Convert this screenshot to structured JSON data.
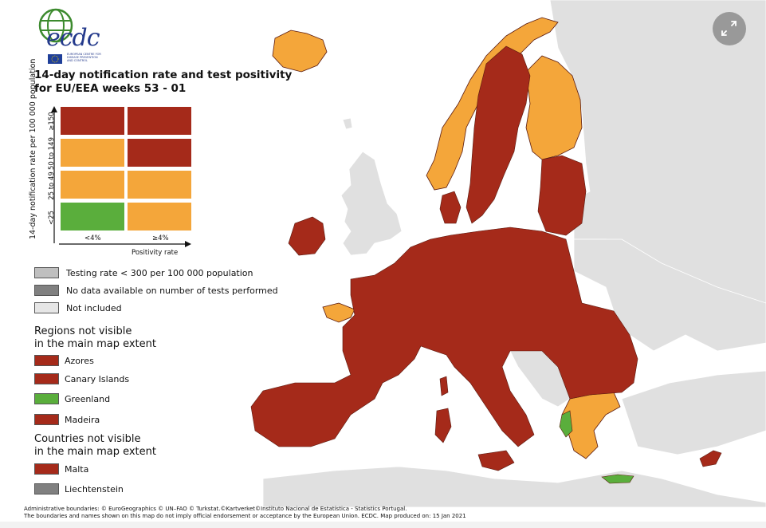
{
  "logo": {
    "text": "ecdc",
    "subtitle_lines": [
      "EUROPEAN CENTRE FOR",
      "DISEASE PREVENTION",
      "AND CONTROL"
    ]
  },
  "title": {
    "line1": "14-day notification rate and test positivity",
    "line2": "for EU/EEA weeks 53 - 01"
  },
  "matrix": {
    "y_axis_label": "14-day notification rate per 100 000 population",
    "y_ticks": [
      "≥150",
      "50 to 149",
      "25 to 49",
      "<25"
    ],
    "x_ticks": [
      "<4%",
      "≥4%"
    ],
    "x_axis_label": "Positivity rate",
    "cell_colors": [
      [
        "#a52a1a",
        "#a52a1a"
      ],
      [
        "#f4a63a",
        "#a52a1a"
      ],
      [
        "#f4a63a",
        "#f4a63a"
      ],
      [
        "#5aae3c",
        "#f4a63a"
      ]
    ]
  },
  "legend_status": [
    {
      "label": "Testing rate < 300 per 100 000 population",
      "color": "#bfbfbf"
    },
    {
      "label": "No data available on number of tests performed",
      "color": "#808080"
    },
    {
      "label": "Not included",
      "color": "#e6e6e6"
    }
  ],
  "legend_regions": {
    "heading_line1": "Regions not visible",
    "heading_line2": "in the main map extent",
    "items": [
      {
        "label": "Azores",
        "color": "#a52a1a"
      },
      {
        "label": "Canary Islands",
        "color": "#a52a1a"
      },
      {
        "label": "Greenland",
        "color": "#5aae3c"
      },
      {
        "label": "Madeira",
        "color": "#a52a1a"
      }
    ]
  },
  "legend_countries": {
    "heading_line1": "Countries not visible",
    "heading_line2": "in the main map extent",
    "items": [
      {
        "label": "Malta",
        "color": "#a52a1a"
      },
      {
        "label": "Liechtenstein",
        "color": "#808080"
      }
    ]
  },
  "footer": {
    "line1": "Administrative boundaries: © EuroGeographics © UN–FAO © Turkstat.©Kartverket©Instituto Nacional de Estatística - Statistics Portugal.",
    "line2": "The boundaries and names shown on this map do not imply official endorsement or acceptance by the European Union. ECDC. Map produced on: 15 Jan 2021"
  },
  "colors": {
    "dark_red": "#a52a1a",
    "orange": "#f4a63a",
    "green": "#5aae3c",
    "not_included": "#e0e0e0",
    "border": "#5a1a10"
  },
  "controls": {
    "expand_icon": "expand-icon"
  }
}
